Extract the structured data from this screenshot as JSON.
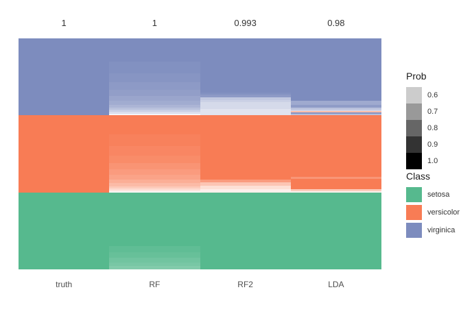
{
  "figure": {
    "background": "#ffffff",
    "text_color_axis": "#4d4d4d",
    "text_color_labels": "#333333"
  },
  "legend": {
    "prob": {
      "title": "Prob",
      "entries": [
        {
          "label": "0.6",
          "color": "#cccccc"
        },
        {
          "label": "0.7",
          "color": "#999999"
        },
        {
          "label": "0.8",
          "color": "#666666"
        },
        {
          "label": "0.9",
          "color": "#333333"
        },
        {
          "label": "1.0",
          "color": "#000000"
        }
      ]
    },
    "class": {
      "title": "Class",
      "entries": [
        {
          "label": "setosa",
          "color": "#56b98e"
        },
        {
          "label": "versicolor",
          "color": "#f87c55"
        },
        {
          "label": "virginica",
          "color": "#7d8cbe"
        }
      ]
    }
  },
  "chart_data": {
    "type": "heatmap",
    "title": "",
    "xlabel": "",
    "ylabel": "",
    "columns": [
      "truth",
      "RF",
      "RF2",
      "LDA"
    ],
    "accuracy_labels": [
      "1",
      "1",
      "0.993",
      "0.98"
    ],
    "accuracy_values": [
      1,
      1,
      0.993,
      0.98
    ],
    "classes": [
      {
        "name": "setosa",
        "color": "#56b98e"
      },
      {
        "name": "versicolor",
        "color": "#f87c55"
      },
      {
        "name": "virginica",
        "color": "#7d8cbe"
      }
    ],
    "class_band_order_top_to_bottom": [
      "virginica",
      "versicolor",
      "setosa"
    ],
    "prob_scale": {
      "title": "Prob",
      "breaks": [
        0.6,
        0.7,
        0.8,
        0.9,
        1.0
      ],
      "colors": [
        "#cccccc",
        "#999999",
        "#666666",
        "#333333",
        "#000000"
      ],
      "min_prob": 0.5,
      "note": "cell color = class hue faded toward white as probability drops from 1.0 to 0.5"
    },
    "columns_data": [
      {
        "name": "truth",
        "bands": [
          {
            "class": "virginica",
            "rows": [
              [
                1,
                1
              ]
            ]
          },
          {
            "class": "versicolor",
            "rows": [
              [
                1,
                1
              ]
            ]
          },
          {
            "class": "setosa",
            "rows": [
              [
                1,
                1
              ]
            ]
          }
        ]
      },
      {
        "name": "RF",
        "bands": [
          {
            "class": "virginica",
            "rows": [
              [
                0.3,
                1
              ],
              [
                0.15,
                0.98
              ],
              [
                0.12,
                0.96
              ],
              [
                0.1,
                0.94
              ],
              [
                0.08,
                0.92
              ],
              [
                0.06,
                0.89
              ],
              [
                0.05,
                0.86
              ],
              [
                0.04,
                0.82
              ],
              [
                0.03,
                0.77
              ],
              [
                0.025,
                0.71
              ],
              [
                0.02,
                0.64
              ],
              [
                0.015,
                0.57
              ],
              [
                0.01,
                0.52
              ]
            ]
          },
          {
            "class": "versicolor",
            "rows": [
              [
                0.25,
                1
              ],
              [
                0.15,
                0.98
              ],
              [
                0.12,
                0.96
              ],
              [
                0.1,
                0.94
              ],
              [
                0.08,
                0.91
              ],
              [
                0.07,
                0.88
              ],
              [
                0.06,
                0.85
              ],
              [
                0.05,
                0.81
              ],
              [
                0.04,
                0.76
              ],
              [
                0.03,
                0.7
              ],
              [
                0.025,
                0.63
              ],
              [
                0.015,
                0.56
              ],
              [
                0.01,
                0.51
              ]
            ]
          },
          {
            "class": "setosa",
            "rows": [
              [
                0.7,
                1
              ],
              [
                0.08,
                0.97
              ],
              [
                0.07,
                0.95
              ],
              [
                0.06,
                0.92
              ],
              [
                0.05,
                0.9
              ],
              [
                0.04,
                0.87
              ]
            ]
          }
        ]
      },
      {
        "name": "RF2",
        "bands": [
          {
            "class": "virginica",
            "rows": [
              [
                0.7,
                1
              ],
              [
                0.03,
                0.98
              ],
              [
                0.035,
                0.94
              ],
              [
                0.035,
                0.74
              ],
              [
                0.03,
                0.7
              ],
              [
                0.085,
                0.66
              ],
              [
                0.085,
                0.62
              ]
            ]
          },
          {
            "class": "versicolor",
            "rows": [
              [
                0.83,
                1
              ],
              [
                0.04,
                0.88
              ],
              [
                0.04,
                0.72
              ],
              [
                0.045,
                0.62
              ],
              [
                0.045,
                0.56
              ]
            ]
          },
          {
            "class": "setosa",
            "rows": [
              [
                1,
                1
              ]
            ]
          }
        ]
      },
      {
        "name": "LDA",
        "bands": [
          {
            "class": "virginica",
            "rows": [
              [
                0.81,
                1
              ],
              [
                0.055,
                0.87
              ],
              [
                0.035,
                0.93
              ],
              [
                0.025,
                0.77
              ],
              [
                0.02,
                0.69
              ],
              [
                0.015,
                0.75,
                "versicolor"
              ],
              [
                0.02,
                0.97
              ],
              [
                0.02,
                0.78
              ]
            ]
          },
          {
            "class": "versicolor",
            "rows": [
              [
                0.8,
                1
              ],
              [
                0.027,
                0.9
              ],
              [
                0.134,
                1
              ],
              [
                0.027,
                0.7
              ],
              [
                0.012,
                0.55
              ]
            ]
          },
          {
            "class": "setosa",
            "rows": [
              [
                1,
                1
              ]
            ]
          }
        ]
      }
    ]
  }
}
